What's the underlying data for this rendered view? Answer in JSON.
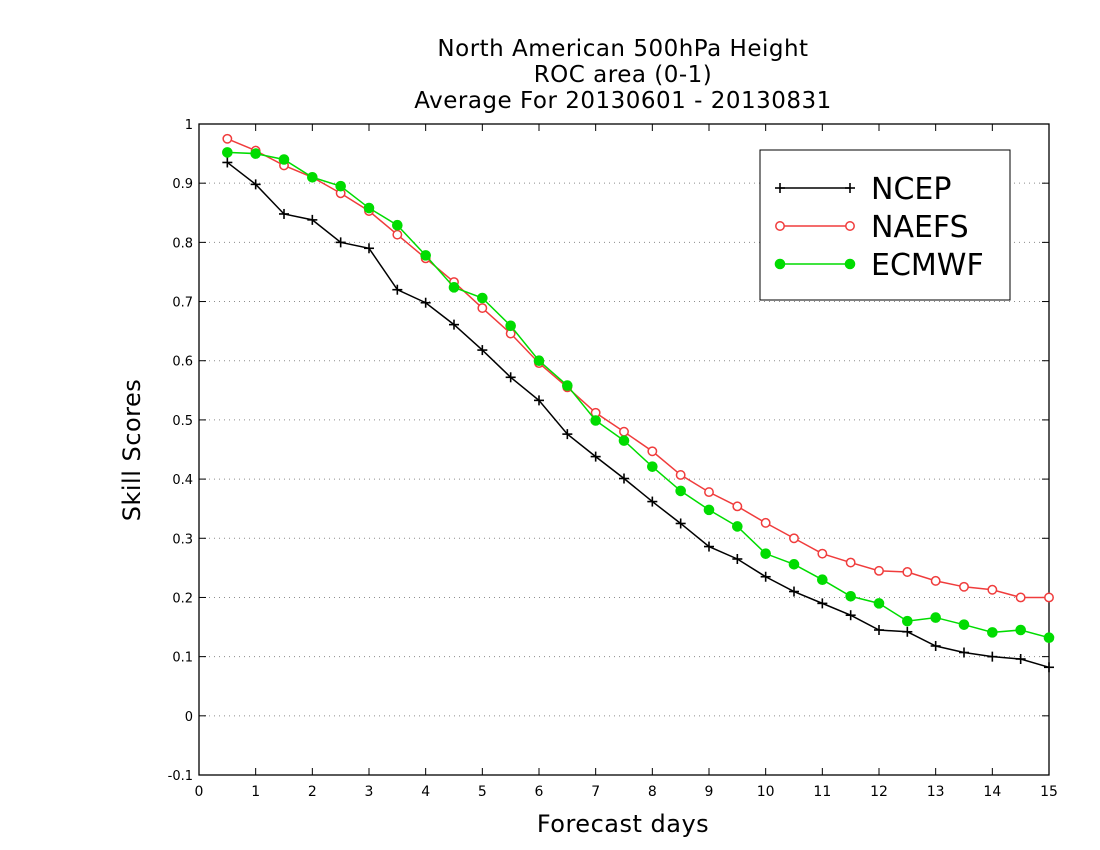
{
  "chart_data": {
    "type": "line",
    "title_lines": [
      "North American 500hPa Height",
      "ROC area (0-1)",
      "Average For 20130601 - 20130831"
    ],
    "xlabel": "Forecast days",
    "ylabel": "Skill Scores",
    "xlim": [
      0,
      15
    ],
    "ylim": [
      -0.1,
      1
    ],
    "x_ticks": [
      "0",
      "1",
      "2",
      "3",
      "4",
      "5",
      "6",
      "7",
      "8",
      "9",
      "10",
      "11",
      "12",
      "13",
      "14",
      "15"
    ],
    "y_ticks": [
      "-0.1",
      "0",
      "0.1",
      "0.2",
      "0.3",
      "0.4",
      "0.5",
      "0.6",
      "0.7",
      "0.8",
      "0.9",
      "1"
    ],
    "grid": "horizontal dotted",
    "legend_position": "top-right",
    "x": [
      0.5,
      1,
      1.5,
      2,
      2.5,
      3,
      3.5,
      4,
      4.5,
      5,
      5.5,
      6,
      6.5,
      7,
      7.5,
      8,
      8.5,
      9,
      9.5,
      10,
      10.5,
      11,
      11.5,
      12,
      12.5,
      13,
      13.5,
      14,
      14.5,
      15
    ],
    "series": [
      {
        "name": "NCEP",
        "color": "#000000",
        "marker": "plus",
        "values": [
          0.935,
          0.898,
          0.848,
          0.838,
          0.8,
          0.79,
          0.72,
          0.698,
          0.661,
          0.618,
          0.572,
          0.533,
          0.476,
          0.438,
          0.401,
          0.362,
          0.325,
          0.286,
          0.265,
          0.235,
          0.21,
          0.19,
          0.17,
          0.145,
          0.142,
          0.118,
          0.107,
          0.1,
          0.096,
          0.082
        ]
      },
      {
        "name": "NAEFS",
        "color": "#f03c3c",
        "marker": "open-circle",
        "values": [
          0.975,
          0.955,
          0.93,
          0.91,
          0.883,
          0.853,
          0.813,
          0.773,
          0.733,
          0.689,
          0.646,
          0.596,
          0.555,
          0.512,
          0.48,
          0.447,
          0.407,
          0.378,
          0.354,
          0.326,
          0.3,
          0.274,
          0.259,
          0.245,
          0.243,
          0.228,
          0.218,
          0.213,
          0.2,
          0.2
        ]
      },
      {
        "name": "ECMWF",
        "color": "#00dc00",
        "marker": "filled-circle",
        "values": [
          0.952,
          0.95,
          0.94,
          0.91,
          0.895,
          0.858,
          0.829,
          0.778,
          0.724,
          0.706,
          0.659,
          0.6,
          0.558,
          0.499,
          0.465,
          0.421,
          0.38,
          0.348,
          0.32,
          0.274,
          0.256,
          0.23,
          0.202,
          0.19,
          0.16,
          0.166,
          0.154,
          0.141,
          0.145,
          0.132
        ]
      }
    ]
  }
}
